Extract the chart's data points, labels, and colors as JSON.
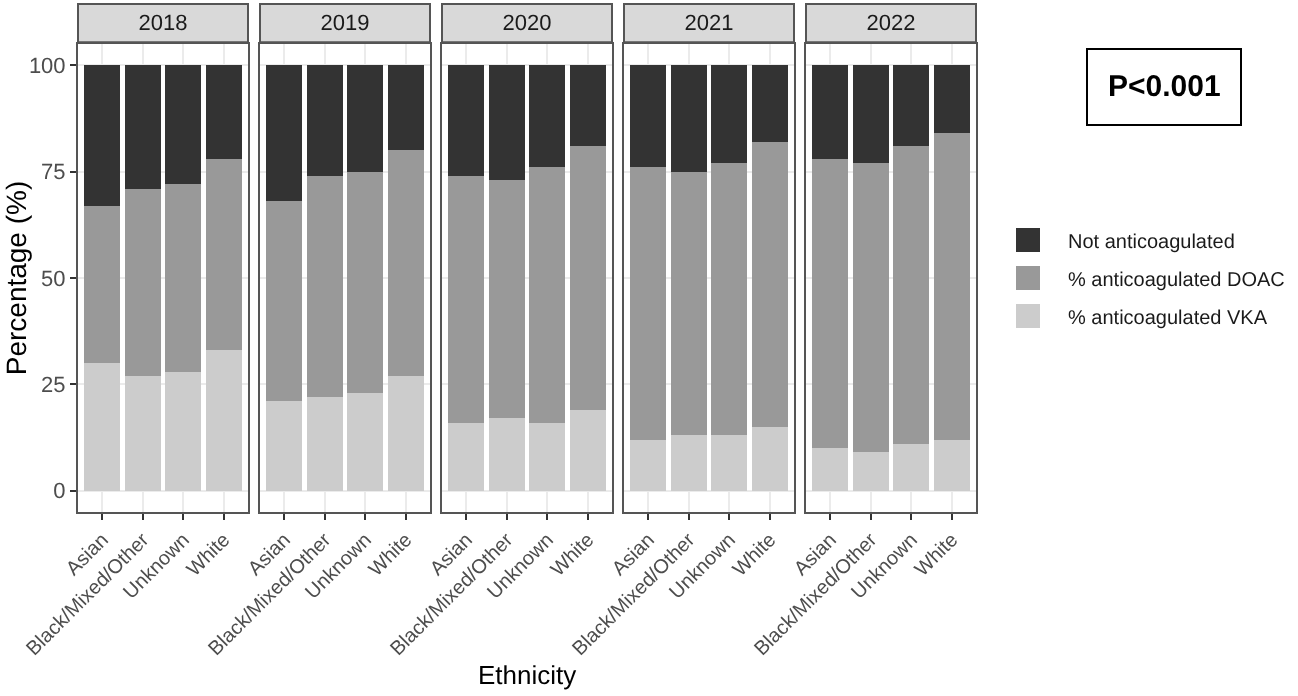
{
  "chart_data": [
    {
      "type": "bar",
      "title": "2018",
      "ylabel": "Percentage (%)",
      "categories": [
        "Asian",
        "Black/Mixed/Other",
        "Unknown",
        "White"
      ],
      "stacked": true,
      "ylim": [
        -5,
        105
      ],
      "yticks": [
        0,
        25,
        50,
        75,
        100
      ],
      "grid": true,
      "legend": false,
      "series": [
        {
          "color": "#cccccc",
          "values": [
            30,
            27,
            28,
            33
          ]
        },
        {
          "color": "#999999",
          "values": [
            37,
            44,
            44,
            45
          ]
        },
        {
          "color": "#333333",
          "values": [
            33,
            29,
            28,
            22
          ]
        }
      ]
    },
    {
      "type": "bar",
      "title": "2019",
      "categories": [
        "Asian",
        "Black/Mixed/Other",
        "Unknown",
        "White"
      ],
      "stacked": true,
      "ylim": [
        -5,
        105
      ],
      "yticks": [
        0,
        25,
        50,
        75,
        100
      ],
      "grid": true,
      "legend": false,
      "tick_labels": "x",
      "series": [
        {
          "color": "#cccccc",
          "values": [
            21,
            22,
            23,
            27
          ]
        },
        {
          "color": "#999999",
          "values": [
            47,
            52,
            52,
            53
          ]
        },
        {
          "color": "#333333",
          "values": [
            32,
            26,
            25,
            20
          ]
        }
      ]
    },
    {
      "type": "bar",
      "title": "2020",
      "xlabel": "Ethnicity",
      "categories": [
        "Asian",
        "Black/Mixed/Other",
        "Unknown",
        "White"
      ],
      "stacked": true,
      "ylim": [
        -5,
        105
      ],
      "yticks": [
        0,
        25,
        50,
        75,
        100
      ],
      "grid": true,
      "legend": false,
      "tick_labels": "x",
      "series": [
        {
          "color": "#cccccc",
          "values": [
            16,
            17,
            16,
            19
          ]
        },
        {
          "color": "#999999",
          "values": [
            58,
            56,
            60,
            62
          ]
        },
        {
          "color": "#333333",
          "values": [
            26,
            27,
            24,
            19
          ]
        }
      ]
    },
    {
      "type": "bar",
      "title": "2021",
      "categories": [
        "Asian",
        "Black/Mixed/Other",
        "Unknown",
        "White"
      ],
      "stacked": true,
      "ylim": [
        -5,
        105
      ],
      "yticks": [
        0,
        25,
        50,
        75,
        100
      ],
      "grid": true,
      "legend": false,
      "tick_labels": "x",
      "series": [
        {
          "color": "#cccccc",
          "values": [
            12,
            13,
            13,
            15
          ]
        },
        {
          "color": "#999999",
          "values": [
            64,
            62,
            64,
            67
          ]
        },
        {
          "color": "#333333",
          "values": [
            24,
            25,
            23,
            18
          ]
        }
      ]
    },
    {
      "type": "bar",
      "title": "2022",
      "categories": [
        "Asian",
        "Black/Mixed/Other",
        "Unknown",
        "White"
      ],
      "stacked": true,
      "ylim": [
        -5,
        105
      ],
      "yticks": [
        0,
        25,
        50,
        75,
        100
      ],
      "grid": true,
      "legend": "right",
      "tick_labels": "x",
      "annotations": [
        "P<0.001"
      ],
      "series": [
        {
          "name": "% anticoagulated VKA",
          "color": "#cccccc",
          "values": [
            10,
            9,
            11,
            12
          ]
        },
        {
          "name": "% anticoagulated DOAC",
          "color": "#999999",
          "values": [
            68,
            68,
            70,
            72
          ]
        },
        {
          "name": "Not anticoagulated",
          "color": "#333333",
          "values": [
            22,
            23,
            19,
            16
          ]
        }
      ]
    }
  ]
}
